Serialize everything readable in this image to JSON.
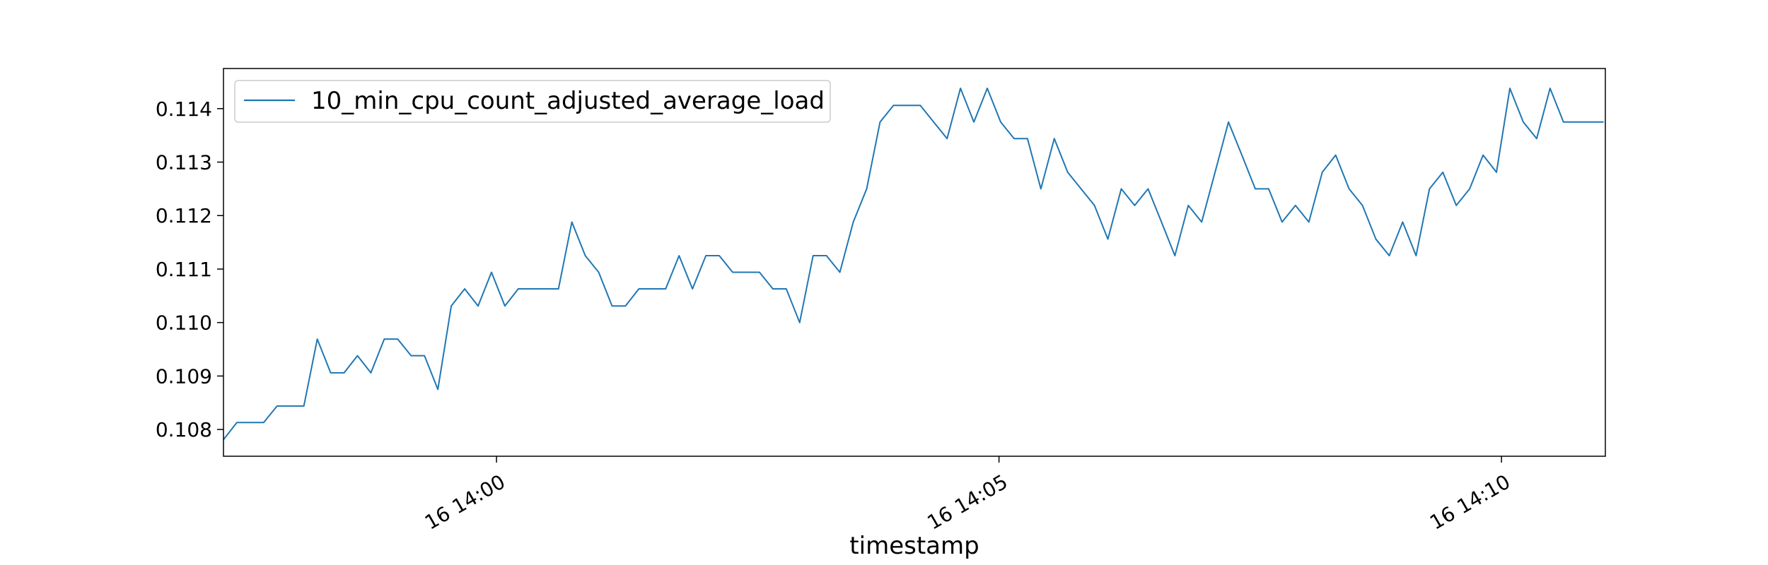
{
  "chart_data": {
    "type": "line",
    "title": "",
    "xlabel": "timestamp",
    "ylabel": "",
    "xlim": [
      "16 13:57:17",
      "16 14:11:02"
    ],
    "ylim": [
      0.1075,
      0.11475
    ],
    "grid": false,
    "legend_position": "upper-left",
    "x_ticks": [
      {
        "value": "16 14:00:00",
        "label": "16 14:00"
      },
      {
        "value": "16 14:05:00",
        "label": "16 14:05"
      },
      {
        "value": "16 14:10:00",
        "label": "16 14:10"
      }
    ],
    "y_ticks": [
      {
        "value": 0.108,
        "label": "0.108"
      },
      {
        "value": 0.109,
        "label": "0.109"
      },
      {
        "value": 0.11,
        "label": "0.110"
      },
      {
        "value": 0.111,
        "label": "0.111"
      },
      {
        "value": 0.112,
        "label": "0.112"
      },
      {
        "value": 0.113,
        "label": "0.113"
      },
      {
        "value": 0.114,
        "label": "0.114"
      }
    ],
    "x": [
      "16 13:57:17",
      "16 13:57:25",
      "16 13:57:33",
      "16 13:57:41",
      "16 13:57:49",
      "16 13:57:57",
      "16 13:58:05",
      "16 13:58:13",
      "16 13:58:21",
      "16 13:58:29",
      "16 13:58:37",
      "16 13:58:45",
      "16 13:58:53",
      "16 13:59:01",
      "16 13:59:09",
      "16 13:59:17",
      "16 13:59:25",
      "16 13:59:33",
      "16 13:59:41",
      "16 13:59:49",
      "16 13:59:57",
      "16 14:00:05",
      "16 14:00:13",
      "16 14:00:21",
      "16 14:00:29",
      "16 14:00:37",
      "16 14:00:45",
      "16 14:00:53",
      "16 14:01:01",
      "16 14:01:09",
      "16 14:01:17",
      "16 14:01:25",
      "16 14:01:33",
      "16 14:01:41",
      "16 14:01:49",
      "16 14:01:57",
      "16 14:02:05",
      "16 14:02:13",
      "16 14:02:21",
      "16 14:02:29",
      "16 14:02:37",
      "16 14:02:45",
      "16 14:02:53",
      "16 14:03:01",
      "16 14:03:09",
      "16 14:03:17",
      "16 14:03:25",
      "16 14:03:33",
      "16 14:03:41",
      "16 14:03:49",
      "16 14:03:57",
      "16 14:04:05",
      "16 14:04:13",
      "16 14:04:21",
      "16 14:04:29",
      "16 14:04:37",
      "16 14:04:45",
      "16 14:04:53",
      "16 14:05:01",
      "16 14:05:09",
      "16 14:05:17",
      "16 14:05:25",
      "16 14:05:33",
      "16 14:05:41",
      "16 14:05:49",
      "16 14:05:57",
      "16 14:06:05",
      "16 14:06:13",
      "16 14:06:21",
      "16 14:06:29",
      "16 14:06:37",
      "16 14:06:45",
      "16 14:06:53",
      "16 14:07:01",
      "16 14:07:09",
      "16 14:07:17",
      "16 14:07:25",
      "16 14:07:33",
      "16 14:07:41",
      "16 14:07:49",
      "16 14:07:57",
      "16 14:08:05",
      "16 14:08:13",
      "16 14:08:21",
      "16 14:08:29",
      "16 14:08:37",
      "16 14:08:45",
      "16 14:08:53",
      "16 14:09:01",
      "16 14:09:09",
      "16 14:09:17",
      "16 14:09:25",
      "16 14:09:33",
      "16 14:09:41",
      "16 14:09:49",
      "16 14:09:57",
      "16 14:10:05",
      "16 14:10:13",
      "16 14:10:21",
      "16 14:10:29",
      "16 14:10:37",
      "16 14:10:45",
      "16 14:10:53",
      "16 14:11:01"
    ],
    "series": [
      {
        "name": "10_min_cpu_count_adjusted_average_load",
        "color": "#1f77b4",
        "values": [
          0.10781,
          0.10813,
          0.10813,
          0.10813,
          0.10844,
          0.10844,
          0.10844,
          0.10969,
          0.10906,
          0.10906,
          0.10938,
          0.10906,
          0.10969,
          0.10969,
          0.10938,
          0.10938,
          0.10875,
          0.11031,
          0.11063,
          0.11031,
          0.11094,
          0.11031,
          0.11063,
          0.11063,
          0.11063,
          0.11063,
          0.11188,
          0.11125,
          0.11094,
          0.11031,
          0.11031,
          0.11063,
          0.11063,
          0.11063,
          0.11125,
          0.11063,
          0.11125,
          0.11125,
          0.11094,
          0.11094,
          0.11094,
          0.11063,
          0.11063,
          0.11,
          0.11125,
          0.11125,
          0.11094,
          0.11188,
          0.1125,
          0.11375,
          0.11406,
          0.11406,
          0.11406,
          0.11375,
          0.11344,
          0.11438,
          0.11375,
          0.11438,
          0.11375,
          0.11344,
          0.11344,
          0.1125,
          0.11344,
          0.11281,
          0.1125,
          0.11219,
          0.11156,
          0.1125,
          0.11219,
          0.1125,
          0.11188,
          0.11125,
          0.11219,
          0.11188,
          0.11281,
          0.11375,
          0.11313,
          0.1125,
          0.1125,
          0.11188,
          0.11219,
          0.11188,
          0.11281,
          0.11313,
          0.1125,
          0.11219,
          0.11156,
          0.11125,
          0.11188,
          0.11125,
          0.1125,
          0.11281,
          0.11219,
          0.1125,
          0.11313,
          0.11281,
          0.11438,
          0.11375,
          0.11344,
          0.11438,
          0.11375,
          0.11375,
          0.11375,
          0.11375
        ]
      }
    ]
  }
}
